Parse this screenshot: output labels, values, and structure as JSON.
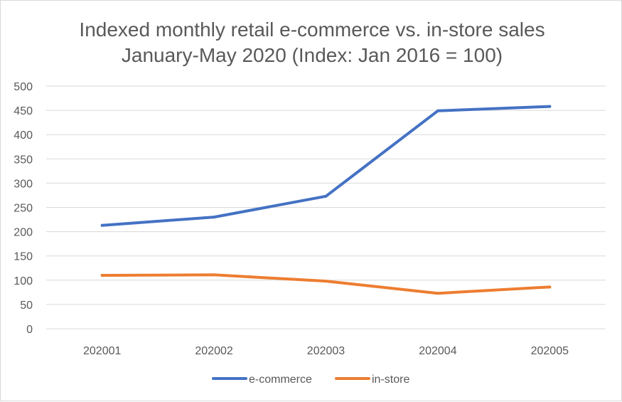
{
  "chart_data": {
    "type": "line",
    "title": "Indexed monthly retail e-commerce vs. in-store sales",
    "subtitle": "January-May 2020 (Index: Jan 2016 = 100)",
    "xlabel": "",
    "ylabel": "",
    "categories": [
      "202001",
      "202002",
      "202003",
      "202004",
      "202005"
    ],
    "series": [
      {
        "name": "e-commerce",
        "color": "#4472c4",
        "values": [
          213,
          230,
          273,
          449,
          458
        ]
      },
      {
        "name": "in-store",
        "color": "#ed7d31",
        "values": [
          110,
          111,
          98,
          73,
          86
        ]
      }
    ],
    "ylim": [
      0,
      500
    ],
    "yticks": [
      0,
      50,
      100,
      150,
      200,
      250,
      300,
      350,
      400,
      450,
      500
    ],
    "grid": true,
    "legend_position": "bottom"
  }
}
